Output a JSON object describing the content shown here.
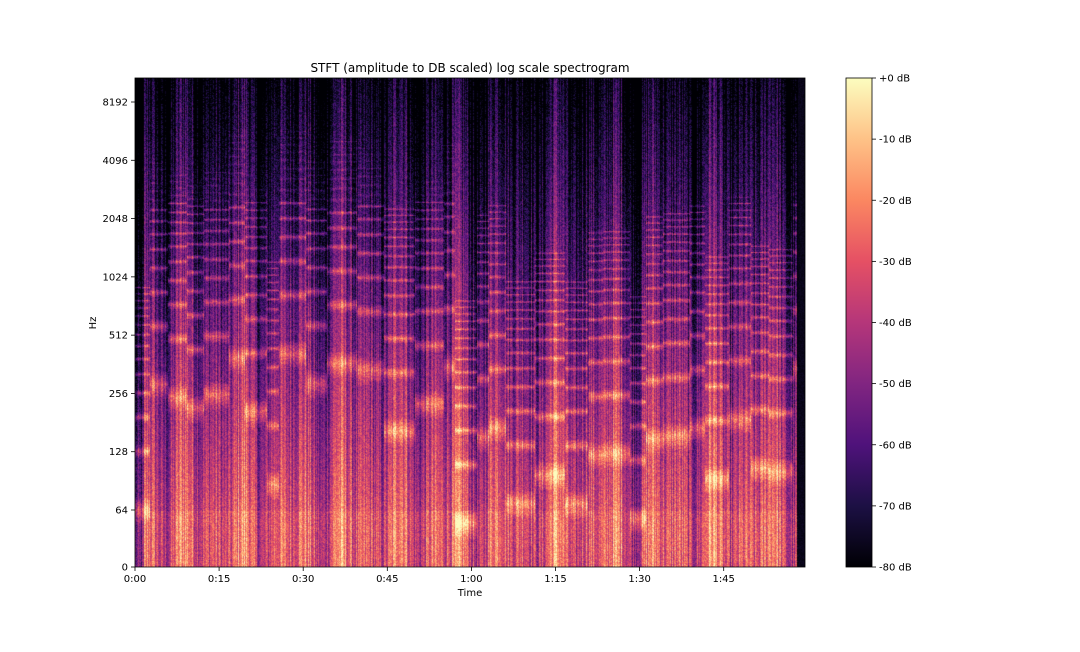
{
  "chart_data": {
    "type": "heatmap",
    "title": "STFT (amplitude to DB scaled) log scale spectrogram",
    "xlabel": "Time",
    "ylabel": "Hz",
    "x_scale": "time",
    "y_scale": "log",
    "xlim_seconds": [
      0,
      119.5
    ],
    "ylim_hz": [
      0,
      11025
    ],
    "x_ticks": [
      {
        "value": 0,
        "label": "0:00"
      },
      {
        "value": 15,
        "label": "0:15"
      },
      {
        "value": 30,
        "label": "0:30"
      },
      {
        "value": 45,
        "label": "0:45"
      },
      {
        "value": 60,
        "label": "1:00"
      },
      {
        "value": 75,
        "label": "1:15"
      },
      {
        "value": 90,
        "label": "1:30"
      },
      {
        "value": 105,
        "label": "1:45"
      }
    ],
    "y_ticks": [
      {
        "value": 0,
        "label": "0"
      },
      {
        "value": 64,
        "label": "64"
      },
      {
        "value": 128,
        "label": "128"
      },
      {
        "value": 256,
        "label": "256"
      },
      {
        "value": 512,
        "label": "512"
      },
      {
        "value": 1024,
        "label": "1024"
      },
      {
        "value": 2048,
        "label": "2048"
      },
      {
        "value": 4096,
        "label": "4096"
      },
      {
        "value": 8192,
        "label": "8192"
      }
    ],
    "colorbar": {
      "colormap": "magma",
      "range_db": [
        -80,
        0
      ],
      "ticks": [
        {
          "value": 0,
          "label": "+0 dB"
        },
        {
          "value": -10,
          "label": "-10 dB"
        },
        {
          "value": -20,
          "label": "-20 dB"
        },
        {
          "value": -30,
          "label": "-30 dB"
        },
        {
          "value": -40,
          "label": "-40 dB"
        },
        {
          "value": -50,
          "label": "-50 dB"
        },
        {
          "value": -60,
          "label": "-60 dB"
        },
        {
          "value": -70,
          "label": "-70 dB"
        },
        {
          "value": -80,
          "label": "-80 dB"
        }
      ]
    },
    "colors": {
      "magma_stops": [
        "#000004",
        "#1c1044",
        "#4f127b",
        "#812581",
        "#b5367a",
        "#e55064",
        "#fb8761",
        "#fec287",
        "#fcfdbf"
      ]
    },
    "grid": false,
    "legend": "none"
  }
}
